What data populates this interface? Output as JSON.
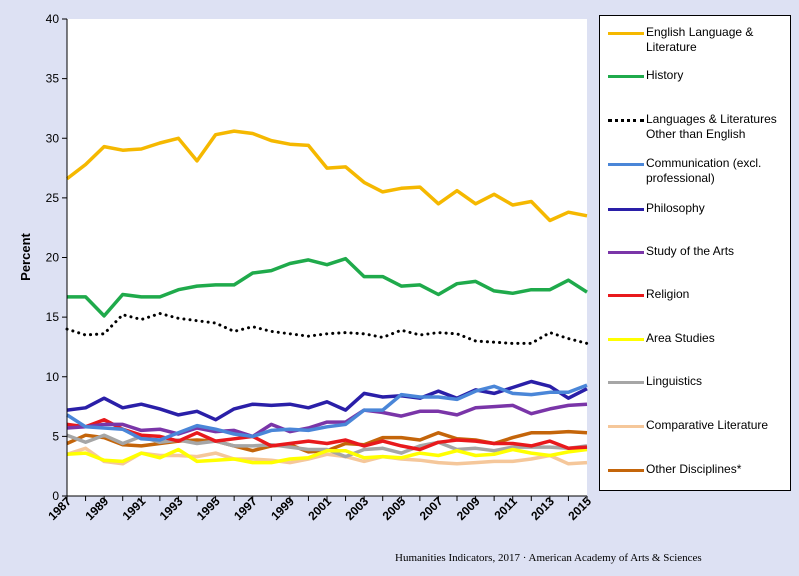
{
  "chart_data": {
    "type": "line",
    "ylabel": "Percent",
    "xlabel": "",
    "title": "",
    "ylim": [
      0,
      40
    ],
    "yticks": [
      0,
      5,
      10,
      15,
      20,
      25,
      30,
      35,
      40
    ],
    "x": [
      1987,
      1988,
      1989,
      1990,
      1991,
      1992,
      1993,
      1994,
      1995,
      1996,
      1997,
      1998,
      1999,
      2000,
      2001,
      2002,
      2003,
      2004,
      2005,
      2006,
      2007,
      2008,
      2009,
      2010,
      2011,
      2012,
      2013,
      2014,
      2015
    ],
    "xtick_labels": [
      "1987",
      "1989",
      "1991",
      "1993",
      "1995",
      "1997",
      "1999",
      "2001",
      "2003",
      "2005",
      "2007",
      "2009",
      "2011",
      "2013",
      "2015"
    ],
    "grid": false,
    "legend_position": "right",
    "series": [
      {
        "name": "English Language & Literature",
        "color": "#f5b800",
        "dash": false,
        "values": [
          26.6,
          27.8,
          29.3,
          29.0,
          29.1,
          29.6,
          30.0,
          28.1,
          30.3,
          30.6,
          30.4,
          29.8,
          29.5,
          29.4,
          27.5,
          27.6,
          26.3,
          25.5,
          25.8,
          25.9,
          24.5,
          25.6,
          24.5,
          25.3,
          24.4,
          24.7,
          23.1,
          23.8,
          23.5
        ]
      },
      {
        "name": "History",
        "color": "#1faa4b",
        "dash": false,
        "values": [
          16.7,
          16.7,
          15.1,
          16.9,
          16.7,
          16.7,
          17.3,
          17.6,
          17.7,
          17.7,
          18.7,
          18.9,
          19.5,
          19.8,
          19.4,
          19.9,
          18.4,
          18.4,
          17.6,
          17.7,
          16.9,
          17.8,
          18.0,
          17.2,
          17.0,
          17.3,
          17.3,
          18.1,
          17.1
        ]
      },
      {
        "name": "Languages & Literatures Other than English",
        "color": "#000000",
        "dash": true,
        "values": [
          14.0,
          13.5,
          13.6,
          15.2,
          14.8,
          15.3,
          14.9,
          14.7,
          14.5,
          13.8,
          14.2,
          13.8,
          13.6,
          13.4,
          13.6,
          13.7,
          13.6,
          13.3,
          13.9,
          13.5,
          13.7,
          13.6,
          13.0,
          12.9,
          12.8,
          12.8,
          13.7,
          13.2,
          12.8
        ]
      },
      {
        "name": "Communication (excl. professional)",
        "color": "#4a86d8",
        "dash": false,
        "values": [
          6.8,
          5.8,
          5.7,
          5.6,
          4.8,
          4.7,
          5.3,
          5.9,
          5.6,
          5.2,
          5.0,
          5.5,
          5.6,
          5.5,
          5.8,
          6.0,
          7.2,
          7.2,
          8.5,
          8.3,
          8.3,
          8.1,
          8.8,
          9.2,
          8.6,
          8.5,
          8.7,
          8.7,
          9.3
        ]
      },
      {
        "name": "Philosophy",
        "color": "#2a1fa8",
        "dash": false,
        "values": [
          7.2,
          7.4,
          8.2,
          7.4,
          7.7,
          7.3,
          6.8,
          7.1,
          6.4,
          7.3,
          7.7,
          7.6,
          7.7,
          7.4,
          7.9,
          7.2,
          8.6,
          8.3,
          8.4,
          8.2,
          8.8,
          8.2,
          8.9,
          8.6,
          9.1,
          9.6,
          9.2,
          8.2,
          9.0
        ]
      },
      {
        "name": "Study of the Arts",
        "color": "#7a35a8",
        "dash": false,
        "values": [
          5.7,
          5.8,
          6.0,
          6.0,
          5.5,
          5.6,
          5.2,
          5.7,
          5.4,
          5.5,
          5.0,
          6.0,
          5.4,
          5.7,
          6.2,
          6.2,
          7.2,
          7.0,
          6.7,
          7.1,
          7.1,
          6.8,
          7.4,
          7.5,
          7.6,
          6.9,
          7.3,
          7.6,
          7.7
        ]
      },
      {
        "name": "Religion",
        "color": "#e8191c",
        "dash": false,
        "values": [
          6.0,
          5.8,
          6.4,
          5.6,
          5.1,
          5.0,
          4.6,
          5.3,
          4.6,
          4.8,
          5.0,
          4.2,
          4.4,
          4.6,
          4.4,
          4.7,
          4.2,
          4.6,
          4.2,
          3.9,
          4.5,
          4.7,
          4.6,
          4.4,
          4.4,
          4.2,
          4.6,
          4.0,
          4.1
        ]
      },
      {
        "name": "Area Studies",
        "color": "#ffff00",
        "dash": false,
        "values": [
          3.5,
          3.6,
          3.0,
          2.9,
          3.6,
          3.2,
          3.9,
          2.9,
          3.0,
          3.1,
          2.8,
          2.8,
          3.1,
          3.2,
          3.8,
          3.8,
          3.2,
          3.3,
          3.2,
          3.6,
          3.4,
          3.8,
          3.4,
          3.5,
          3.9,
          3.6,
          3.4,
          3.7,
          3.9
        ]
      },
      {
        "name": "Linguistics",
        "color": "#a6a6a6",
        "dash": false,
        "values": [
          5.1,
          4.5,
          5.1,
          4.4,
          5.0,
          4.5,
          4.7,
          4.4,
          4.6,
          4.2,
          4.2,
          4.3,
          4.1,
          3.9,
          3.9,
          3.3,
          3.9,
          4.0,
          3.6,
          4.2,
          4.5,
          3.9,
          4.0,
          3.8,
          4.1,
          4.1,
          4.1,
          4.0,
          4.2
        ]
      },
      {
        "name": "Comparative Literature",
        "color": "#f5c79a",
        "dash": false,
        "values": [
          3.5,
          4.0,
          2.9,
          2.7,
          3.6,
          3.4,
          3.4,
          3.3,
          3.6,
          3.1,
          3.1,
          3.0,
          2.8,
          3.1,
          3.5,
          3.3,
          2.9,
          3.3,
          3.1,
          3.0,
          2.8,
          2.7,
          2.8,
          2.9,
          2.9,
          3.1,
          3.4,
          2.7,
          2.8
        ]
      },
      {
        "name": "Other Disciplines*",
        "color": "#c4650a",
        "dash": false,
        "values": [
          4.4,
          5.1,
          4.9,
          4.3,
          4.2,
          4.4,
          4.6,
          4.7,
          4.6,
          4.2,
          3.8,
          4.2,
          4.3,
          3.7,
          3.8,
          4.4,
          4.3,
          4.9,
          4.9,
          4.7,
          5.3,
          4.8,
          4.7,
          4.4,
          4.9,
          5.3,
          5.3,
          5.4,
          5.3
        ]
      }
    ]
  },
  "legend_labels": [
    [
      "English Language &",
      "Literature"
    ],
    [
      "History"
    ],
    [
      "Languages & Literatures",
      "Other than English"
    ],
    [
      "Communication (excl.",
      "professional)"
    ],
    [
      "Philosophy"
    ],
    [
      "Study of the Arts"
    ],
    [
      "Religion"
    ],
    [
      "Area Studies"
    ],
    [
      "Linguistics"
    ],
    [
      "Comparative Literature"
    ],
    [
      "Other Disciplines*"
    ]
  ],
  "footer": "Humanities Indicators, 2017 · American Academy of Arts & Sciences"
}
